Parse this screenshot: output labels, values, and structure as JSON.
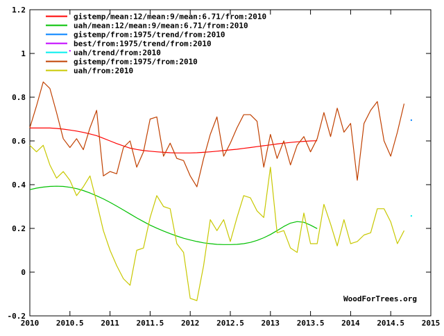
{
  "watermark": "WoodForTrees.org",
  "chart_data": {
    "type": "line",
    "title": "",
    "xlabel": "",
    "ylabel": "",
    "xlim": [
      2010,
      2015
    ],
    "ylim": [
      -0.2,
      1.2
    ],
    "grid": false,
    "background": "#ffffff",
    "axis_color": "#000000",
    "legend_position": "top-left",
    "x_ticks": {
      "values": [
        2010,
        2010.5,
        2011,
        2011.5,
        2012,
        2012.5,
        2013,
        2013.5,
        2014,
        2014.5,
        2015
      ],
      "labels": [
        "2010",
        "2010.5",
        "2011",
        "2011.5",
        "2012",
        "2012.5",
        "2013",
        "2013.5",
        "2014",
        "2014.5",
        "2015"
      ]
    },
    "y_ticks": {
      "values": [
        1.2,
        1.0,
        0.8,
        0.6,
        0.4,
        0.2,
        0.0,
        -0.2
      ],
      "labels": [
        "1.2",
        "1",
        "0.8",
        "0.6",
        "0.4",
        "0.2",
        "0",
        "-0.2"
      ]
    },
    "series": [
      {
        "name": "gistemp/mean:12/mean:9/mean:6.71/from:2010",
        "color": "#ff0000",
        "style": "line",
        "x_start": 2010.0,
        "x_step": 0.0833333,
        "values": [
          0.659,
          0.659,
          0.659,
          0.659,
          0.657,
          0.654,
          0.65,
          0.645,
          0.639,
          0.632,
          0.624,
          0.612,
          0.6,
          0.588,
          0.577,
          0.567,
          0.561,
          0.556,
          0.553,
          0.55,
          0.548,
          0.546,
          0.545,
          0.545,
          0.545,
          0.546,
          0.548,
          0.55,
          0.553,
          0.556,
          0.559,
          0.562,
          0.566,
          0.57,
          0.574,
          0.578,
          0.582,
          0.586,
          0.59,
          0.593,
          0.596,
          0.598,
          0.6,
          0.601
        ]
      },
      {
        "name": "uah/mean:12/mean:9/mean:6.71/from:2010",
        "color": "#00c000",
        "style": "line",
        "x_start": 2010.0,
        "x_step": 0.0833333,
        "values": [
          0.377,
          0.384,
          0.389,
          0.392,
          0.393,
          0.392,
          0.388,
          0.382,
          0.373,
          0.362,
          0.349,
          0.335,
          0.319,
          0.302,
          0.284,
          0.266,
          0.248,
          0.231,
          0.215,
          0.201,
          0.188,
          0.176,
          0.165,
          0.155,
          0.147,
          0.14,
          0.134,
          0.13,
          0.127,
          0.126,
          0.126,
          0.127,
          0.13,
          0.136,
          0.145,
          0.157,
          0.172,
          0.19,
          0.209,
          0.224,
          0.231,
          0.228,
          0.215,
          0.199
        ]
      },
      {
        "name": "gistemp/from:1975/trend/from:2010",
        "color": "#0080ff",
        "style": "point",
        "points": [
          [
            2014.757,
            0.695
          ]
        ]
      },
      {
        "name": "best/from:1975/trend/from:2010",
        "color": "#c000ff",
        "style": "point",
        "points": [
          [
            2010.5,
            1.012
          ]
        ]
      },
      {
        "name": "uah/trend/from:2010",
        "color": "#00eeee",
        "style": "point",
        "points": [
          [
            2014.757,
            0.257
          ]
        ]
      },
      {
        "name": "gistemp/from:1975/from:2010",
        "color": "#c04000",
        "style": "line",
        "x_start": 2010.0,
        "x_step": 0.0833333,
        "values": [
          0.66,
          0.76,
          0.87,
          0.84,
          0.73,
          0.61,
          0.57,
          0.61,
          0.56,
          0.66,
          0.74,
          0.44,
          0.46,
          0.45,
          0.57,
          0.6,
          0.48,
          0.55,
          0.7,
          0.71,
          0.53,
          0.59,
          0.52,
          0.51,
          0.44,
          0.39,
          0.52,
          0.63,
          0.71,
          0.53,
          0.59,
          0.66,
          0.72,
          0.72,
          0.69,
          0.48,
          0.63,
          0.52,
          0.6,
          0.49,
          0.58,
          0.62,
          0.55,
          0.61,
          0.73,
          0.62,
          0.75,
          0.64,
          0.68,
          0.42,
          0.68,
          0.74,
          0.78,
          0.6,
          0.53,
          0.64,
          0.77
        ]
      },
      {
        "name": "uah/from:2010",
        "color": "#c8c800",
        "style": "line",
        "x_start": 2010.0,
        "x_step": 0.0833333,
        "values": [
          0.58,
          0.55,
          0.58,
          0.49,
          0.43,
          0.46,
          0.42,
          0.35,
          0.39,
          0.44,
          0.32,
          0.19,
          0.1,
          0.03,
          -0.03,
          -0.06,
          0.1,
          0.11,
          0.25,
          0.35,
          0.3,
          0.29,
          0.13,
          0.09,
          -0.12,
          -0.13,
          0.03,
          0.24,
          0.19,
          0.24,
          0.14,
          0.25,
          0.35,
          0.34,
          0.28,
          0.25,
          0.48,
          0.18,
          0.19,
          0.11,
          0.09,
          0.27,
          0.13,
          0.13,
          0.31,
          0.22,
          0.12,
          0.24,
          0.13,
          0.14,
          0.17,
          0.18,
          0.29,
          0.29,
          0.23,
          0.13,
          0.19
        ]
      }
    ]
  }
}
